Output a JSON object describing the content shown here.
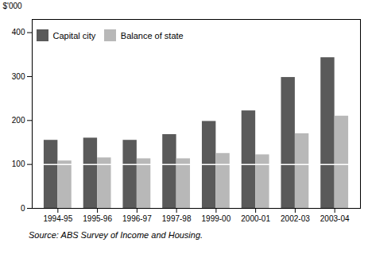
{
  "chart_data": {
    "type": "bar",
    "categories": [
      "1994-95",
      "1995-96",
      "1996-97",
      "1997-98",
      "1999-00",
      "2000-01",
      "2002-03",
      "2003-04"
    ],
    "series": [
      {
        "name": "Capital city",
        "color": "#5a5a5a",
        "values": [
          155,
          160,
          155,
          168,
          198,
          222,
          298,
          343
        ]
      },
      {
        "name": "Balance of state",
        "color": "#b8b8b8",
        "values": [
          108,
          115,
          113,
          113,
          125,
          122,
          170,
          210
        ]
      }
    ],
    "ylabel": "$'000",
    "ylim": [
      0,
      430
    ],
    "yticks": [
      0,
      100,
      200,
      300,
      400
    ],
    "hline": {
      "y": 100,
      "color": "#ffffff"
    },
    "caption": "Source: ABS Survey of Income and Housing.",
    "legend": "upper left",
    "grid": false
  }
}
